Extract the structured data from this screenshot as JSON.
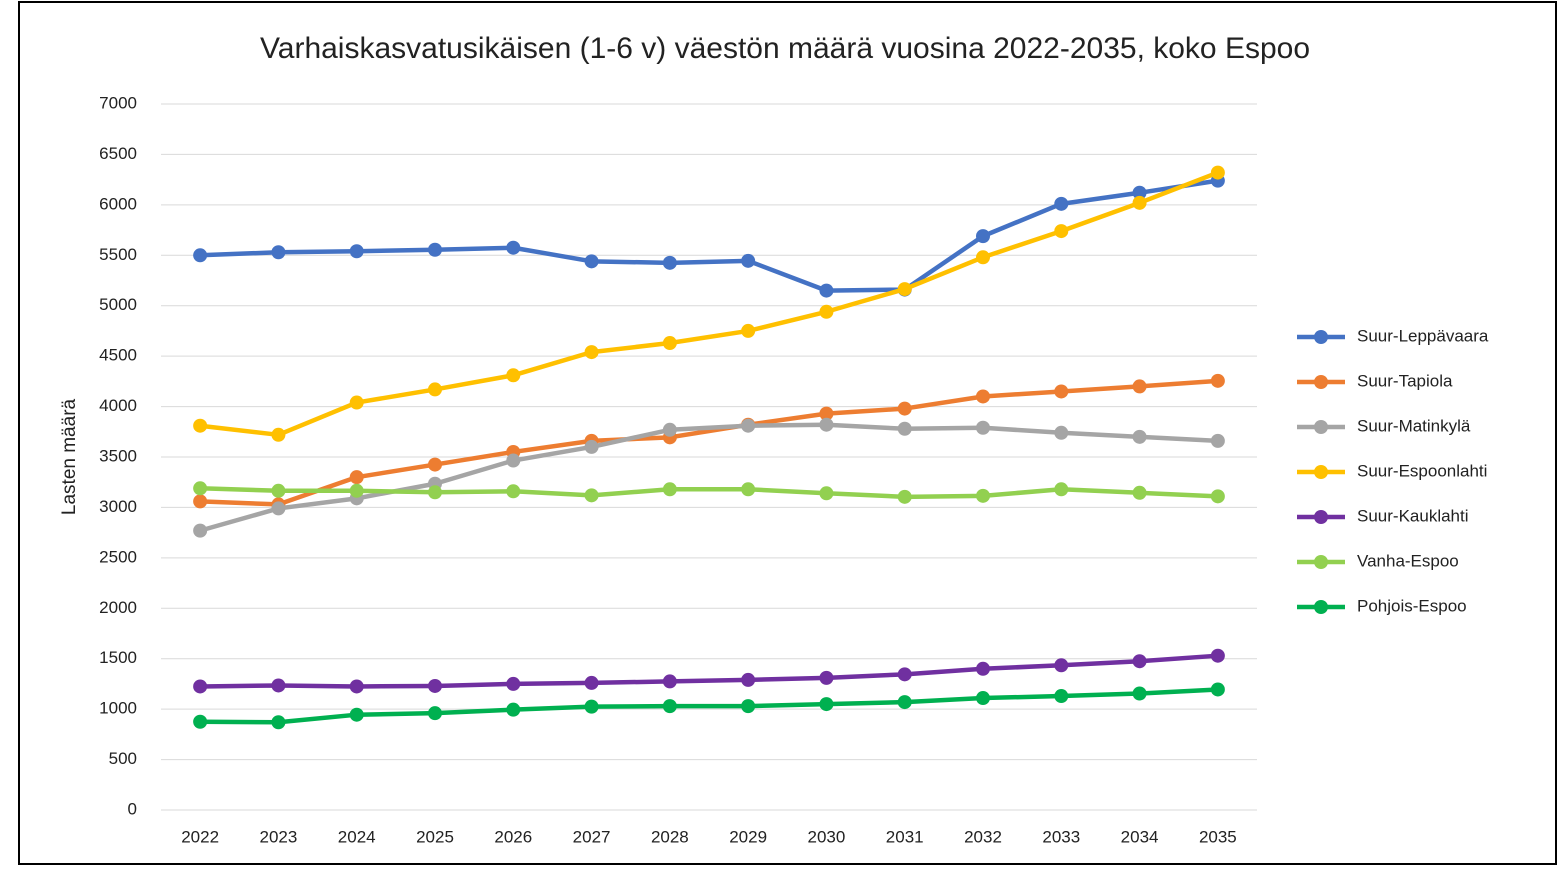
{
  "chart_data": {
    "type": "line",
    "title": "Varhaiskasvatusikäisen (1-6 v) väestön määrä vuosina 2022-2035, koko Espoo",
    "y_label": "Lasten määrä",
    "categories": [
      "2022",
      "2023",
      "2024",
      "2025",
      "2026",
      "2027",
      "2028",
      "2029",
      "2030",
      "2031",
      "2032",
      "2033",
      "2034",
      "2035"
    ],
    "ylim": [
      0,
      7000
    ],
    "yticks": [
      0,
      500,
      1000,
      1500,
      2000,
      2500,
      3000,
      3500,
      4000,
      4500,
      5000,
      5500,
      6000,
      6500,
      7000
    ],
    "grid": true,
    "legend": "right",
    "series": [
      {
        "name": "Suur-Leppävaara",
        "color": "#4472c4",
        "values": [
          5500,
          5530,
          5540,
          5555,
          5575,
          5440,
          5425,
          5445,
          5150,
          5160,
          5690,
          6010,
          6120,
          6240
        ]
      },
      {
        "name": "Suur-Tapiola",
        "color": "#ed7d31",
        "values": [
          3060,
          3030,
          3300,
          3425,
          3550,
          3660,
          3695,
          3820,
          3930,
          3980,
          4100,
          4150,
          4200,
          4255
        ]
      },
      {
        "name": "Suur-Matinkylä",
        "color": "#a5a5a5",
        "values": [
          2770,
          2990,
          3090,
          3235,
          3465,
          3600,
          3770,
          3810,
          3820,
          3780,
          3790,
          3740,
          3700,
          3660
        ]
      },
      {
        "name": "Suur-Espoonlahti",
        "color": "#ffc000",
        "values": [
          3810,
          3720,
          4040,
          4170,
          4310,
          4540,
          4630,
          4750,
          4940,
          5165,
          5480,
          5740,
          6020,
          6320
        ]
      },
      {
        "name": "Suur-Kauklahti",
        "color": "#7030a0",
        "values": [
          1225,
          1235,
          1225,
          1230,
          1250,
          1260,
          1275,
          1290,
          1310,
          1345,
          1400,
          1435,
          1475,
          1530
        ]
      },
      {
        "name": "Vanha-Espoo",
        "color": "#92d050",
        "values": [
          3190,
          3165,
          3165,
          3150,
          3160,
          3120,
          3180,
          3180,
          3140,
          3105,
          3115,
          3180,
          3145,
          3110
        ]
      },
      {
        "name": "Pohjois-Espoo",
        "color": "#00b050",
        "values": [
          875,
          870,
          945,
          960,
          995,
          1025,
          1030,
          1030,
          1050,
          1070,
          1110,
          1130,
          1155,
          1195
        ]
      }
    ]
  }
}
